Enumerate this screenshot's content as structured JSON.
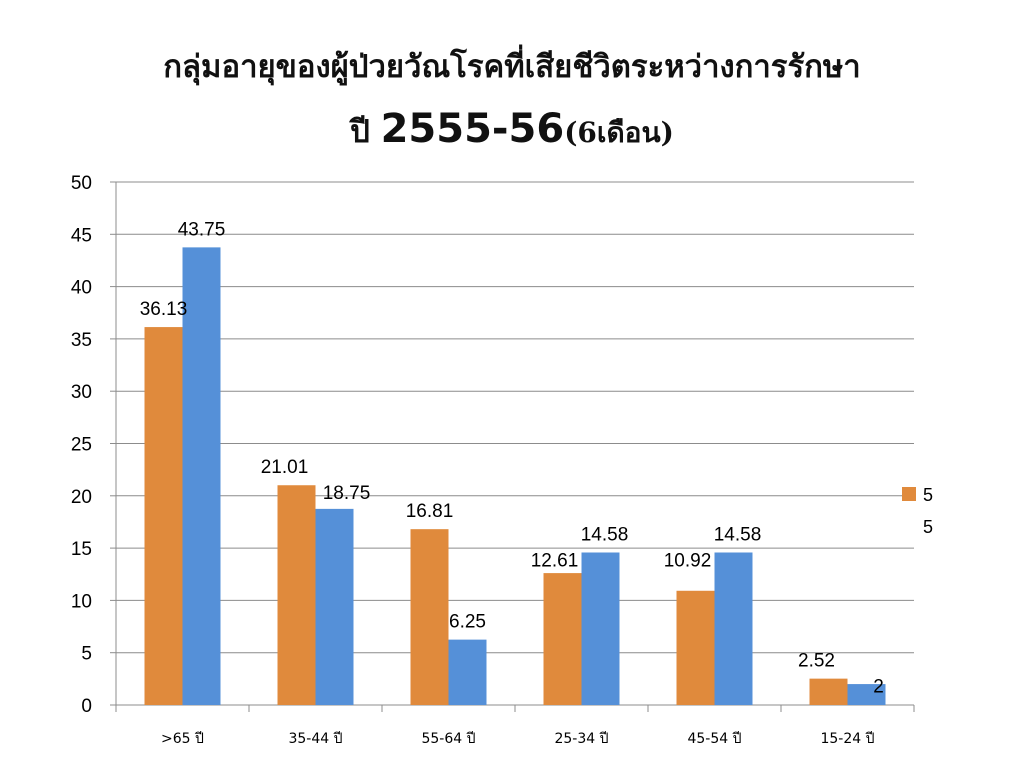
{
  "title": {
    "line1": "กลุ่มอายุของผู้ป่วยวัณโรคที่เสียชีวิตระหว่างการรักษา",
    "line2_prefix": "ปี ",
    "line2_years": "2555-56",
    "line2_suffix": "(6เดือน)"
  },
  "chart_data": {
    "type": "bar",
    "title": "กลุ่มอายุของผู้ป่วยวัณโรคที่เสียชีวิตระหว่างการรักษา ปี 2555-56(6เดือน)",
    "categories": [
      ">65 ปี",
      "35-44 ปี",
      "55-64 ปี",
      "25-34 ปี",
      "45-54 ปี",
      "15-24 ปี"
    ],
    "series": [
      {
        "name": "5",
        "color": "#E08A3C",
        "values": [
          36.13,
          21.01,
          16.81,
          12.61,
          10.92,
          2.52
        ],
        "labels": [
          "36.13",
          "21.01",
          "16.81",
          "12.61",
          "10.92",
          "2.52"
        ]
      },
      {
        "name": "5",
        "color": "#5590D8",
        "values": [
          43.75,
          18.75,
          6.25,
          14.58,
          14.58,
          2
        ],
        "labels": [
          "43.75",
          "18.75",
          "6.25",
          "14.58",
          "14.58",
          "2"
        ]
      }
    ],
    "ylim": [
      0,
      50
    ],
    "yticks": [
      0,
      5,
      10,
      15,
      20,
      25,
      30,
      35,
      40,
      45,
      50
    ],
    "grid": true,
    "legend": "right",
    "xlabel": "",
    "ylabel": ""
  }
}
